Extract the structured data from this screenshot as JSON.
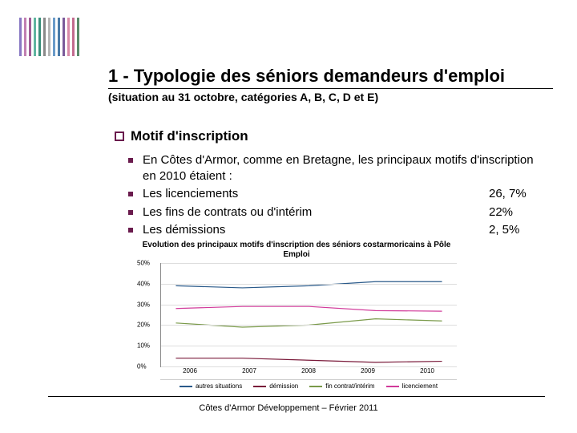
{
  "stripes": [
    "#8878c3",
    "#c17fb1",
    "#a05c95",
    "#5fb5a0",
    "#3a8f7a",
    "#8a8a8a",
    "#b5b5b5",
    "#6a9bc9",
    "#4a7ba8",
    "#7a5a9a",
    "#d88aa8",
    "#c26b8f",
    "#5a8a6a"
  ],
  "title": "1 - Typologie des séniors demandeurs d'emploi",
  "subtitle": "(situation au 31 octobre, catégories A, B, C, D et E)",
  "section_heading": "Motif d'inscription",
  "intro": "En Côtes d'Armor, comme en Bretagne, les principaux motifs d'inscription en 2010 étaient :",
  "items": [
    {
      "label": "Les licenciements",
      "value": "26, 7%"
    },
    {
      "label": "Les fins de contrats ou d'intérim",
      "value": "22%"
    },
    {
      "label": "Les démissions",
      "value": "2, 5%"
    }
  ],
  "chart": {
    "title": "Evolution des principaux motifs d'inscription des séniors costarmoricains à Pôle Emploi",
    "yticks": [
      "0%",
      "10%",
      "20%",
      "30%",
      "40%",
      "50%"
    ],
    "xlabels": [
      "2006",
      "2007",
      "2008",
      "2009",
      "2010"
    ],
    "ymax": 50,
    "series": [
      {
        "name": "autres situations",
        "color": "#2a5a8a",
        "values": [
          39,
          38,
          39,
          41,
          41
        ]
      },
      {
        "name": "démission",
        "color": "#7a1a3a",
        "values": [
          4,
          4,
          3,
          2,
          2.5
        ]
      },
      {
        "name": "fin contrat/intérim",
        "color": "#7a9a4a",
        "values": [
          21,
          19,
          20,
          23,
          22
        ]
      },
      {
        "name": "licenciement",
        "color": "#d13a9a",
        "values": [
          28,
          29,
          29,
          27,
          26.7
        ]
      }
    ]
  },
  "footer": "Côtes d'Armor Développement – Février 2011"
}
